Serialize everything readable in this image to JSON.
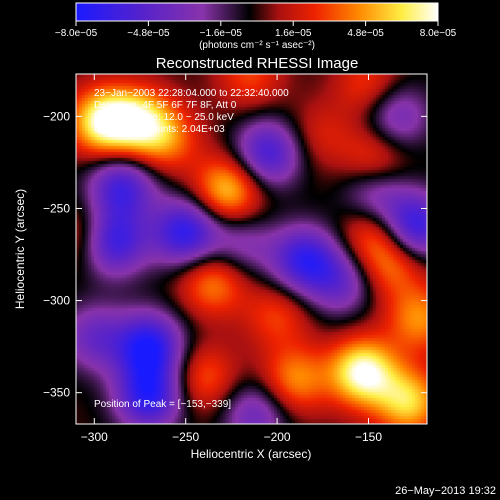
{
  "chart_data": {
    "type": "heatmap",
    "title": "Reconstructed RHESSI Image",
    "xlabel": "Heliocentric X (arcsec)",
    "ylabel": "Heliocentric Y (arcsec)",
    "xlim": [
      -310,
      -118
    ],
    "ylim": [
      -367,
      -177
    ],
    "x_ticks": [
      -300,
      -250,
      -200,
      -150
    ],
    "x_tick_labels": [
      "−300",
      "−250",
      "−200",
      "−150"
    ],
    "y_ticks": [
      -200,
      -250,
      -300,
      -350
    ],
    "y_tick_labels": [
      "−200",
      "−250",
      "−300",
      "−350"
    ],
    "colorbar": {
      "min": -8e-05,
      "max": 8e-05,
      "tick_values": [
        -8e-05,
        -4.8e-05,
        -1.6e-05,
        1.6e-05,
        4.8e-05,
        8e-05
      ],
      "tick_labels": [
        "−8.0e−05",
        "−4.8e−05",
        "−1.6e−05",
        "1.6e−05",
        "4.8e−05",
        "8.0e−05"
      ],
      "unit_label": "(photons cm⁻² s⁻¹ asec⁻²)",
      "colors": [
        "#1a1aff",
        "#5522cc",
        "#8833aa",
        "#000000",
        "#aa1111",
        "#ee2200",
        "#ff8800",
        "#ffee44",
        "#ffffff"
      ]
    },
    "annotations": [
      "23−Jan−2003 22:28:04.000 to 22:32:40.000",
      "Detectors: 4F 5F 6F 7F 8F, Att 0",
      "Energy Range: 12.0 − 25.0 keV",
      "Clean    Total counts: 2.04E+03"
    ],
    "peak_label": "Position of Peak = [−153,−339]",
    "peak": [
      -153,
      -339
    ],
    "features": [
      {
        "x": -295,
        "y": -203,
        "value": 7.5e-05
      },
      {
        "x": -275,
        "y": -203,
        "value": 6e-05
      },
      {
        "x": -305,
        "y": -265,
        "value": 3e-05
      },
      {
        "x": -260,
        "y": -213,
        "value": 3.5e-05
      },
      {
        "x": -227,
        "y": -240,
        "value": 6e-05
      },
      {
        "x": -235,
        "y": -290,
        "value": 4.5e-05
      },
      {
        "x": -240,
        "y": -342,
        "value": 3.5e-05
      },
      {
        "x": -200,
        "y": -308,
        "value": 3e-05
      },
      {
        "x": -190,
        "y": -343,
        "value": 4.5e-05
      },
      {
        "x": -177,
        "y": -210,
        "value": 2e-05
      },
      {
        "x": -147,
        "y": -222,
        "value": 3e-05
      },
      {
        "x": -148,
        "y": -262,
        "value": 4e-05
      },
      {
        "x": -137,
        "y": -280,
        "value": 4e-05
      },
      {
        "x": -153,
        "y": -339,
        "value": 8e-05
      },
      {
        "x": -128,
        "y": -355,
        "value": 6e-05
      },
      {
        "x": -122,
        "y": -310,
        "value": 4.5e-05
      },
      {
        "x": -215,
        "y": -178,
        "value": 3e-05
      },
      {
        "x": -150,
        "y": -183,
        "value": 3e-05
      },
      {
        "x": -285,
        "y": -238,
        "value": -6e-05
      },
      {
        "x": -290,
        "y": -268,
        "value": -7e-05
      },
      {
        "x": -250,
        "y": -263,
        "value": -7e-05
      },
      {
        "x": -270,
        "y": -325,
        "value": -7.5e-05
      },
      {
        "x": -270,
        "y": -352,
        "value": -7e-05
      },
      {
        "x": -205,
        "y": -220,
        "value": -6e-05
      },
      {
        "x": -185,
        "y": -278,
        "value": -6.5e-05
      },
      {
        "x": -147,
        "y": -245,
        "value": -4e-05
      },
      {
        "x": -125,
        "y": -260,
        "value": -7e-05
      },
      {
        "x": -135,
        "y": -200,
        "value": -4e-05
      },
      {
        "x": -165,
        "y": -290,
        "value": -4e-05
      },
      {
        "x": -212,
        "y": -362,
        "value": -4e-05
      },
      {
        "x": -300,
        "y": -320,
        "value": -4e-05
      },
      {
        "x": -220,
        "y": -270,
        "value": -3e-05
      }
    ]
  },
  "footer": {
    "date": "26−May−2013 19:32"
  }
}
